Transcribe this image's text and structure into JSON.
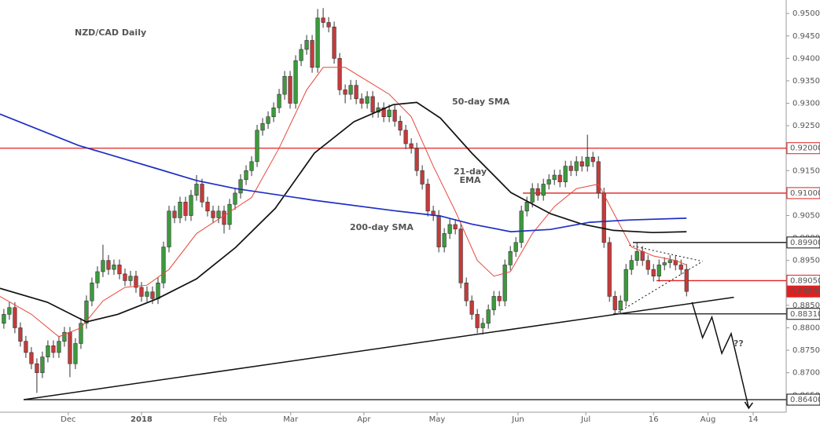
{
  "chart_data": {
    "type": "candlestick",
    "title": "NZD/CAD Daily",
    "up_color": "#3c9a3c",
    "down_color": "#c63a3a",
    "xlim": [
      -0.7,
      142.1
    ],
    "ylim": [
      0.8612,
      0.953
    ],
    "xticks": [
      {
        "value": 11.7,
        "label": "Dec"
      },
      {
        "value": 25,
        "label": "2018"
      },
      {
        "value": 39.3,
        "label": "Feb"
      },
      {
        "value": 52.1,
        "label": "Mar"
      },
      {
        "value": 65.4,
        "label": "Apr"
      },
      {
        "value": 78.7,
        "label": "May"
      },
      {
        "value": 93.4,
        "label": "Jun"
      },
      {
        "value": 105.7,
        "label": "Jul"
      },
      {
        "value": 118,
        "label": "16"
      },
      {
        "value": 127.9,
        "label": "Aug"
      },
      {
        "value": 136.1,
        "label": "14"
      }
    ],
    "yticks": [
      {
        "value": 0.865,
        "label": "0.86500"
      },
      {
        "value": 0.87,
        "label": "0.87000"
      },
      {
        "value": 0.875,
        "label": "0.87500"
      },
      {
        "value": 0.88,
        "label": "0.88000"
      },
      {
        "value": 0.885,
        "label": "0.88500"
      },
      {
        "value": 0.89,
        "label": "0.89000"
      },
      {
        "value": 0.895,
        "label": "0.89500"
      },
      {
        "value": 0.9,
        "label": "0.90000"
      },
      {
        "value": 0.905,
        "label": "0.90500"
      },
      {
        "value": 0.91,
        "label": "0.91000"
      },
      {
        "value": 0.915,
        "label": "0.91500"
      },
      {
        "value": 0.92,
        "label": "0.92000"
      },
      {
        "value": 0.925,
        "label": "0.92500"
      },
      {
        "value": 0.93,
        "label": "0.93000"
      },
      {
        "value": 0.935,
        "label": "0.93500"
      },
      {
        "value": 0.94,
        "label": "0.94000"
      },
      {
        "value": 0.945,
        "label": "0.94500"
      },
      {
        "value": 0.95,
        "label": "0.95000"
      }
    ],
    "open": [
      0.881,
      0.883,
      0.8845,
      0.88,
      0.877,
      0.8745,
      0.872,
      0.87,
      0.8735,
      0.876,
      0.8745,
      0.877,
      0.879,
      0.872,
      0.8765,
      0.881,
      0.886,
      0.89,
      0.8925,
      0.895,
      0.893,
      0.894,
      0.892,
      0.8905,
      0.8915,
      0.889,
      0.887,
      0.888,
      0.8865,
      0.89,
      0.898,
      0.906,
      0.9045,
      0.908,
      0.905,
      0.9095,
      0.912,
      0.908,
      0.906,
      0.9045,
      0.906,
      0.903,
      0.9075,
      0.91,
      0.913,
      0.915,
      0.917,
      0.924,
      0.9255,
      0.927,
      0.929,
      0.932,
      0.936,
      0.93,
      0.9395,
      0.942,
      0.944,
      0.938,
      0.949,
      0.948,
      0.947,
      0.94,
      0.933,
      0.932,
      0.934,
      0.931,
      0.93,
      0.9315,
      0.928,
      0.929,
      0.927,
      0.9285,
      0.926,
      0.924,
      0.921,
      0.92,
      0.915,
      0.912,
      0.906,
      0.905,
      0.898,
      0.901,
      0.903,
      0.902,
      0.89,
      0.886,
      0.883,
      0.88,
      0.881,
      0.884,
      0.887,
      0.886,
      0.894,
      0.897,
      0.899,
      0.906,
      0.908,
      0.911,
      0.9095,
      0.912,
      0.913,
      0.914,
      0.9125,
      0.916,
      0.915,
      0.917,
      0.916,
      0.918,
      0.917,
      0.91,
      0.899,
      0.887,
      0.884,
      0.886,
      0.893,
      0.895,
      0.897,
      0.895,
      0.893,
      0.8915,
      0.894,
      0.8945,
      0.895,
      0.894,
      0.893
    ],
    "high": [
      0.8842,
      0.8857,
      0.8857,
      0.8812,
      0.8782,
      0.8757,
      0.8732,
      0.8747,
      0.8772,
      0.8772,
      0.8782,
      0.8802,
      0.8802,
      0.8777,
      0.8822,
      0.8872,
      0.8912,
      0.8937,
      0.8985,
      0.8962,
      0.8952,
      0.8952,
      0.8932,
      0.8927,
      0.8927,
      0.8902,
      0.8892,
      0.8892,
      0.8912,
      0.8992,
      0.9072,
      0.9072,
      0.9092,
      0.9092,
      0.9107,
      0.914,
      0.9132,
      0.9092,
      0.9072,
      0.9072,
      0.9072,
      0.9087,
      0.9112,
      0.9142,
      0.9162,
      0.9182,
      0.9252,
      0.9267,
      0.9282,
      0.9302,
      0.9332,
      0.9372,
      0.9372,
      0.9407,
      0.9432,
      0.9452,
      0.9452,
      0.951,
      0.9512,
      0.9492,
      0.9482,
      0.9412,
      0.9342,
      0.9352,
      0.9352,
      0.9322,
      0.9327,
      0.9327,
      0.9302,
      0.9302,
      0.9297,
      0.9297,
      0.9272,
      0.9252,
      0.9222,
      0.9212,
      0.9162,
      0.9132,
      0.9072,
      0.9062,
      0.9022,
      0.9042,
      0.9042,
      0.9032,
      0.8912,
      0.8872,
      0.8842,
      0.8822,
      0.8852,
      0.8882,
      0.8882,
      0.8952,
      0.8982,
      0.9002,
      0.9072,
      0.9092,
      0.9122,
      0.9122,
      0.9132,
      0.9142,
      0.9152,
      0.9152,
      0.9172,
      0.9172,
      0.9182,
      0.9182,
      0.923,
      0.9192,
      0.9182,
      0.9112,
      0.9002,
      0.8882,
      0.8872,
      0.8942,
      0.8962,
      0.899,
      0.8982,
      0.8962,
      0.8942,
      0.8952,
      0.8957,
      0.8962,
      0.8962,
      0.8952,
      0.8942
    ],
    "low": [
      0.8798,
      0.8818,
      0.8788,
      0.8758,
      0.8733,
      0.8708,
      0.8655,
      0.8688,
      0.8723,
      0.8733,
      0.8733,
      0.8758,
      0.869,
      0.8708,
      0.8753,
      0.8798,
      0.8848,
      0.8888,
      0.8913,
      0.8918,
      0.8918,
      0.8908,
      0.8893,
      0.8893,
      0.8878,
      0.8858,
      0.8858,
      0.8853,
      0.8853,
      0.8888,
      0.8968,
      0.9033,
      0.9033,
      0.9038,
      0.9038,
      0.9083,
      0.9068,
      0.9048,
      0.9033,
      0.9033,
      0.901,
      0.9018,
      0.9063,
      0.9088,
      0.9118,
      0.9138,
      0.9158,
      0.9228,
      0.9243,
      0.9258,
      0.9278,
      0.9308,
      0.9288,
      0.9288,
      0.9383,
      0.9408,
      0.9368,
      0.9368,
      0.9468,
      0.9458,
      0.9388,
      0.9318,
      0.93,
      0.9308,
      0.9298,
      0.9288,
      0.9288,
      0.9268,
      0.9268,
      0.9258,
      0.9258,
      0.9248,
      0.9228,
      0.9198,
      0.9188,
      0.9138,
      0.9108,
      0.9048,
      0.9038,
      0.8968,
      0.8968,
      0.8998,
      0.9008,
      0.8888,
      0.8848,
      0.8818,
      0.8788,
      0.8785,
      0.8798,
      0.8828,
      0.8848,
      0.8848,
      0.8928,
      0.8958,
      0.8978,
      0.9048,
      0.9068,
      0.9083,
      0.9083,
      0.9108,
      0.9118,
      0.9113,
      0.9113,
      0.9138,
      0.9138,
      0.9148,
      0.9148,
      0.9158,
      0.9088,
      0.8978,
      0.8858,
      0.883,
      0.883,
      0.8848,
      0.8918,
      0.8938,
      0.8938,
      0.8918,
      0.8903,
      0.8903,
      0.8928,
      0.8933,
      0.8928,
      0.8918,
      0.887
    ],
    "close": [
      0.883,
      0.8845,
      0.88,
      0.877,
      0.8745,
      0.872,
      0.87,
      0.8735,
      0.876,
      0.8745,
      0.877,
      0.879,
      0.872,
      0.8765,
      0.881,
      0.886,
      0.89,
      0.8925,
      0.895,
      0.893,
      0.894,
      0.892,
      0.8905,
      0.8915,
      0.889,
      0.887,
      0.888,
      0.8865,
      0.89,
      0.898,
      0.906,
      0.9045,
      0.908,
      0.905,
      0.9095,
      0.912,
      0.908,
      0.906,
      0.9045,
      0.906,
      0.903,
      0.9075,
      0.91,
      0.913,
      0.915,
      0.917,
      0.924,
      0.9255,
      0.927,
      0.929,
      0.932,
      0.936,
      0.93,
      0.9395,
      0.942,
      0.944,
      0.938,
      0.949,
      0.948,
      0.947,
      0.94,
      0.933,
      0.932,
      0.934,
      0.931,
      0.93,
      0.9315,
      0.928,
      0.929,
      0.927,
      0.9285,
      0.926,
      0.924,
      0.921,
      0.92,
      0.915,
      0.912,
      0.906,
      0.905,
      0.898,
      0.901,
      0.903,
      0.902,
      0.89,
      0.886,
      0.883,
      0.88,
      0.881,
      0.884,
      0.887,
      0.886,
      0.894,
      0.897,
      0.899,
      0.906,
      0.908,
      0.911,
      0.9095,
      0.912,
      0.913,
      0.914,
      0.9125,
      0.916,
      0.915,
      0.917,
      0.916,
      0.918,
      0.917,
      0.91,
      0.899,
      0.887,
      0.884,
      0.886,
      0.893,
      0.895,
      0.897,
      0.895,
      0.893,
      0.8915,
      0.894,
      0.8945,
      0.895,
      0.894,
      0.893,
      0.8881
    ],
    "series": [
      {
        "name": "21-day EMA",
        "color": "#e8473a",
        "x": [
          -0.7,
          5,
          10,
          14,
          18,
          22,
          26,
          30,
          35,
          40,
          45,
          50,
          55,
          58,
          62,
          66,
          70,
          74,
          78,
          82,
          86,
          89,
          92,
          96,
          100,
          104,
          108,
          111,
          114,
          118,
          122,
          124
        ],
        "values": [
          0.887,
          0.883,
          0.878,
          0.88,
          0.886,
          0.889,
          0.8895,
          0.893,
          0.901,
          0.905,
          0.909,
          0.92,
          0.933,
          0.938,
          0.938,
          0.935,
          0.932,
          0.927,
          0.916,
          0.906,
          0.895,
          0.8915,
          0.8925,
          0.901,
          0.907,
          0.911,
          0.912,
          0.905,
          0.898,
          0.896,
          0.895,
          0.894
        ]
      },
      {
        "name": "50-day SMA",
        "color": "#111111",
        "x": [
          -0.7,
          7.9,
          15,
          20.7,
          27.9,
          35,
          42.1,
          49.3,
          56.4,
          63.6,
          70.7,
          75,
          79.3,
          85,
          92.1,
          99.3,
          105,
          110.7,
          117.9,
          124
        ],
        "values": [
          0.8888,
          0.8857,
          0.8813,
          0.883,
          0.8865,
          0.8909,
          0.8979,
          0.9066,
          0.9189,
          0.9259,
          0.9297,
          0.9302,
          0.9267,
          0.9189,
          0.9101,
          0.9054,
          0.9031,
          0.9017,
          0.9012,
          0.9014
        ]
      },
      {
        "name": "200-day SMA",
        "color": "#1f2fc4",
        "x": [
          -0.7,
          13.6,
          27.9,
          35,
          42.1,
          56.4,
          70.7,
          79.3,
          85,
          92.1,
          99.3,
          106.4,
          113.6,
          124
        ],
        "values": [
          0.9276,
          0.9206,
          0.9154,
          0.9128,
          0.911,
          0.9084,
          0.9061,
          0.9049,
          0.9031,
          0.9014,
          0.9019,
          0.9035,
          0.904,
          0.9044
        ]
      }
    ],
    "levels": [
      {
        "value": 0.92,
        "label": "0.92000",
        "color": "#e02020",
        "filled": false
      },
      {
        "value": 0.91,
        "label": "0.91000",
        "color": "#e02020",
        "filled": false
      },
      {
        "value": 0.899,
        "label": "0.89900",
        "color": "#111111",
        "filled": false
      },
      {
        "value": 0.8905,
        "label": "0.89050",
        "color": "#e02020",
        "filled": false
      },
      {
        "value": 0.88809,
        "label": "0.88809",
        "color": "#e02020",
        "filled": true
      },
      {
        "value": 0.8831,
        "label": "0.88310",
        "color": "#111111",
        "filled": false
      },
      {
        "value": 0.864,
        "label": "0.86400",
        "color": "#111111",
        "filled": false
      }
    ],
    "trendlines": [
      {
        "x": [
          3.6,
          132.6
        ],
        "values": [
          0.864,
          0.8868
        ],
        "dash": false
      },
      {
        "x": [
          113.6,
          126.9
        ],
        "values": [
          0.8984,
          0.8948
        ],
        "dash": true
      },
      {
        "x": [
          111,
          126.9
        ],
        "values": [
          0.883,
          0.8948
        ],
        "dash": true
      },
      {
        "x": [
          125,
          126.9,
          128.6,
          130.4,
          132.1,
          135.3
        ],
        "values": [
          0.8857,
          0.8778,
          0.8824,
          0.8743,
          0.8787,
          0.8621
        ],
        "dash": false
      }
    ],
    "annotations": [
      {
        "text": "NZD/CAD Daily",
        "color": "#111111"
      },
      {
        "text": "50-day SMA",
        "color": "#111111"
      },
      {
        "text": "21-day",
        "color": "#e02020"
      },
      {
        "text": "EMA",
        "color": "#e02020"
      },
      {
        "text": "200-day SMA",
        "color": "#1f2fc4"
      },
      {
        "text": "??",
        "color": "#111111"
      }
    ]
  }
}
